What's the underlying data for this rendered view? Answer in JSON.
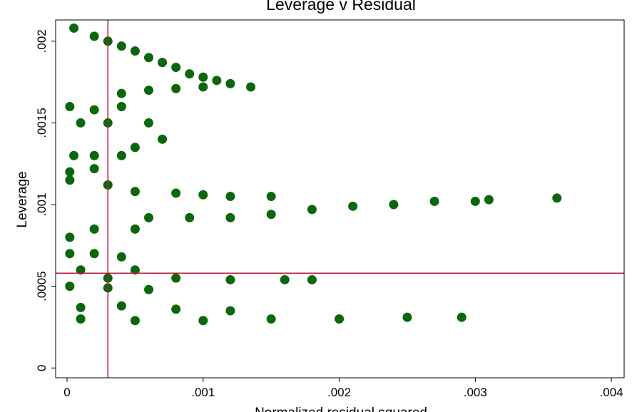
{
  "chart_data": {
    "type": "scatter",
    "title": "Leverage v Residual",
    "x_label": "Normalized residual squared",
    "y_label": "Leverage",
    "series": [
      {
        "name": "Leverage",
        "color": "#0b670b",
        "x": [
          5e-05,
          0.0002,
          0.0003,
          0.0004,
          0.0005,
          0.0006,
          0.0007,
          0.0008,
          0.0009,
          0.001,
          0.0011,
          0.0012,
          0.00135,
          0.0004,
          0.0006,
          0.0008,
          0.001,
          2e-05,
          0.0002,
          0.0004,
          0.0001,
          0.0003,
          0.0006,
          5e-05,
          0.0002,
          0.0004,
          2e-05,
          0.0002,
          0.0005,
          0.0007,
          2e-05,
          0.0003,
          0.0005,
          0.0008,
          0.001,
          0.0012,
          0.0015,
          0.0006,
          0.0009,
          0.0012,
          0.0015,
          0.0018,
          0.0021,
          0.0024,
          0.0027,
          0.003,
          0.0031,
          0.0036,
          2e-05,
          0.0002,
          0.0005,
          2e-05,
          0.0002,
          0.0004,
          0.0001,
          0.0005,
          0.0003,
          0.0008,
          0.0012,
          0.0016,
          0.0018,
          2e-05,
          0.0003,
          0.0006,
          0.0001,
          0.0004,
          0.0008,
          0.0012,
          0.0001,
          0.0005,
          0.001,
          0.0015,
          0.002,
          0.0025,
          0.0029
        ],
        "values": [
          0.00208,
          0.00203,
          0.002,
          0.00197,
          0.00194,
          0.0019,
          0.00187,
          0.00184,
          0.0018,
          0.00178,
          0.00176,
          0.00174,
          0.00172,
          0.00168,
          0.0017,
          0.00171,
          0.00172,
          0.0016,
          0.00158,
          0.0016,
          0.0015,
          0.0015,
          0.0015,
          0.0013,
          0.0013,
          0.0013,
          0.0012,
          0.00122,
          0.00135,
          0.0014,
          0.00115,
          0.00112,
          0.00108,
          0.00107,
          0.00106,
          0.00105,
          0.00105,
          0.00092,
          0.00092,
          0.00092,
          0.00094,
          0.00097,
          0.00099,
          0.001,
          0.00102,
          0.00102,
          0.00103,
          0.00104,
          0.0008,
          0.00085,
          0.00085,
          0.0007,
          0.0007,
          0.00068,
          0.0006,
          0.0006,
          0.00055,
          0.00055,
          0.00054,
          0.00054,
          0.00054,
          0.0005,
          0.00049,
          0.00048,
          0.00037,
          0.00038,
          0.00036,
          0.00035,
          0.0003,
          0.00029,
          0.00029,
          0.0003,
          0.0003,
          0.00031,
          0.00031
        ]
      }
    ],
    "xline": 0.0003,
    "yline": 0.00058,
    "line_color": "#c0143c",
    "xlim": [
      -8.4e-05,
      0.004094
    ],
    "ylim": [
      -6e-05,
      0.00213
    ],
    "xticks": [
      0,
      {
        "value": 0.001,
        "label": ".001"
      },
      {
        "value": 0.002,
        "label": ".002"
      },
      {
        "value": 0.003,
        "label": ".003"
      },
      {
        "value": 0.004,
        "label": ".004"
      }
    ],
    "yticks": [
      0,
      {
        "value": 0.0005,
        "label": ".0005"
      },
      {
        "value": 0.001,
        "label": ".001"
      },
      {
        "value": 0.0015,
        "label": ".0015"
      },
      {
        "value": 0.002,
        "label": ".002"
      }
    ]
  }
}
